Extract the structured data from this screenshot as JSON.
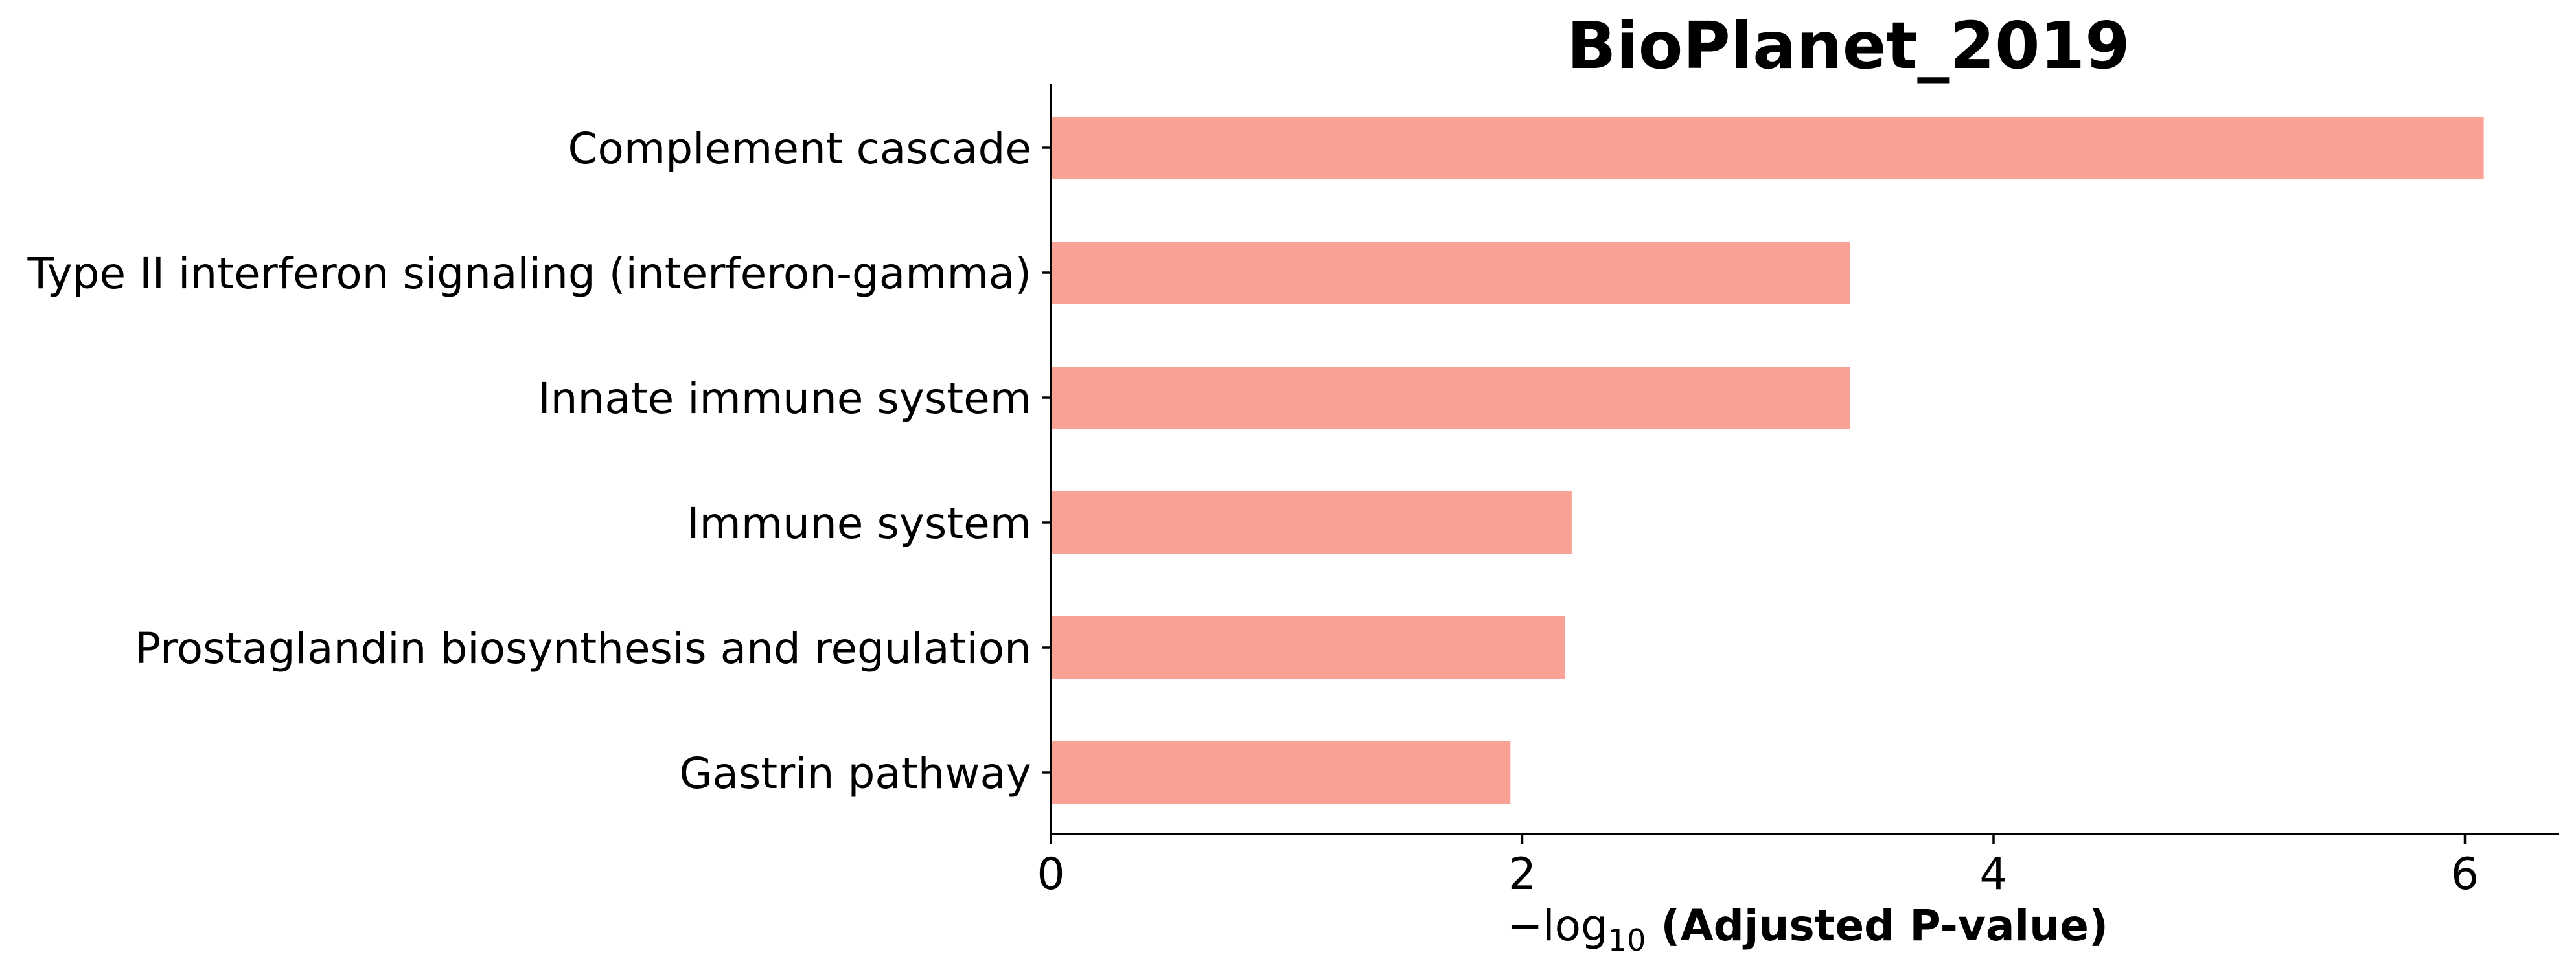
{
  "chart_data": {
    "type": "bar",
    "orientation": "horizontal",
    "title": "BioPlanet_2019",
    "xlabel": {
      "prefix": "−log",
      "subscript": "10",
      "bold": " (Adjusted P-value)"
    },
    "ylabel": "",
    "categories": [
      "Complement cascade",
      "Type II interferon signaling (interferon-gamma)",
      "Innate immune system",
      "Immune system",
      "Prostaglandin biosynthesis and regulation",
      "Gastrin pathway"
    ],
    "values": [
      6.08,
      3.39,
      3.39,
      2.21,
      2.18,
      1.95
    ],
    "xlim": [
      0,
      6.4
    ],
    "xticks": [
      "0",
      "2",
      "4",
      "6"
    ],
    "bar_color": "#FAA196",
    "grid": false,
    "legend": "none"
  }
}
